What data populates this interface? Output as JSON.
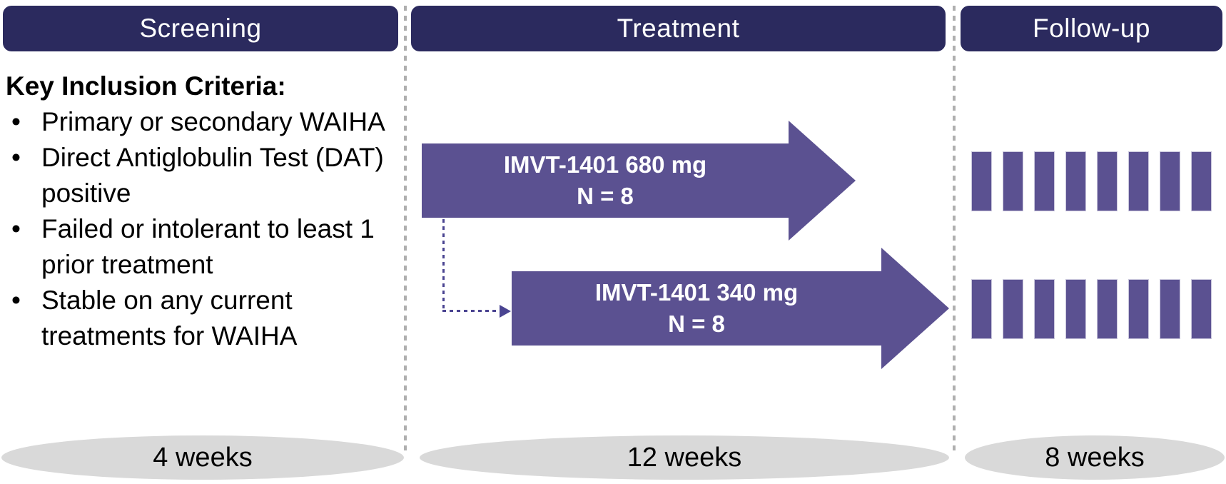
{
  "colors": {
    "header_bg": "#2B2A5E",
    "arm_purple": "#5B5191",
    "pill_bg": "#D9D9D9",
    "divider": "#AFAFAF",
    "connector": "#4A4491"
  },
  "phases": [
    {
      "label": "Screening",
      "duration": "4 weeks"
    },
    {
      "label": "Treatment",
      "duration": "12 weeks"
    },
    {
      "label": "Follow-up",
      "duration": "8 weeks"
    }
  ],
  "screening": {
    "criteria_title": "Key Inclusion Criteria:",
    "criteria": [
      "Primary or secondary WAIHA",
      "Direct Antiglobulin Test (DAT) positive",
      "Failed or intolerant to least 1 prior treatment",
      "Stable on any current treatments for WAIHA"
    ]
  },
  "treatment": {
    "arms": [
      {
        "dose_label": "IMVT-1401 680 mg",
        "n_label": "N = 8"
      },
      {
        "dose_label": "IMVT-1401 340 mg",
        "n_label": "N = 8"
      }
    ]
  },
  "followup": {
    "tick_rows": 2,
    "ticks_per_row": 8
  }
}
